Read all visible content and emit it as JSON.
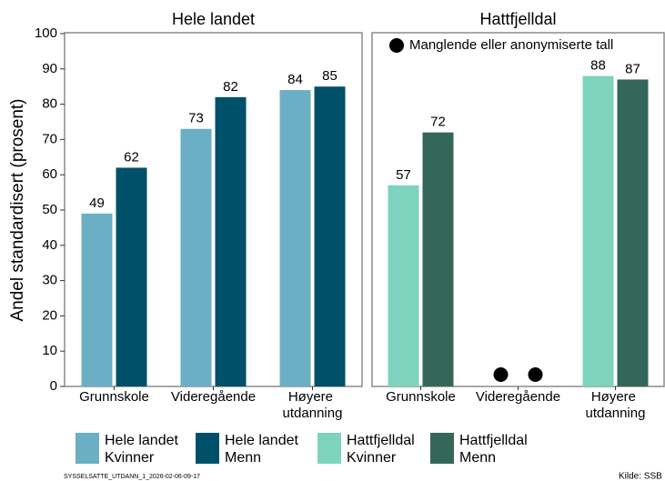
{
  "chart_data": [
    {
      "type": "bar",
      "title": "Hele landet",
      "ylabel": "Andel standardisert (prosent)",
      "categories": [
        "Grunnskole",
        "Videregående",
        "Høyere utdanning"
      ],
      "series": [
        {
          "name": "Hele landet Kvinner",
          "color": "#6aafc4",
          "values": [
            49,
            73,
            84
          ]
        },
        {
          "name": "Hele landet Menn",
          "color": "#005069",
          "values": [
            62,
            82,
            85
          ]
        }
      ],
      "ylim": [
        0,
        100
      ],
      "yticks": [
        0,
        10,
        20,
        30,
        40,
        50,
        60,
        70,
        80,
        90,
        100
      ]
    },
    {
      "type": "bar",
      "title": "Hattfjelldal",
      "annotation": "Manglende eller anonymiserte tall",
      "categories": [
        "Grunnskole",
        "Videregående",
        "Høyere utdanning"
      ],
      "series": [
        {
          "name": "Hattfjelldal Kvinner",
          "color": "#7dd3bd",
          "values": [
            57,
            null,
            88
          ]
        },
        {
          "name": "Hattfjelldal Menn",
          "color": "#35665a",
          "values": [
            72,
            null,
            87
          ]
        }
      ],
      "ylim": [
        0,
        100
      ]
    }
  ],
  "footer": {
    "id": "SYSSELSATTE_UTDANN_1_2026-02-06-09-17",
    "source": "Kilde: SSB"
  }
}
